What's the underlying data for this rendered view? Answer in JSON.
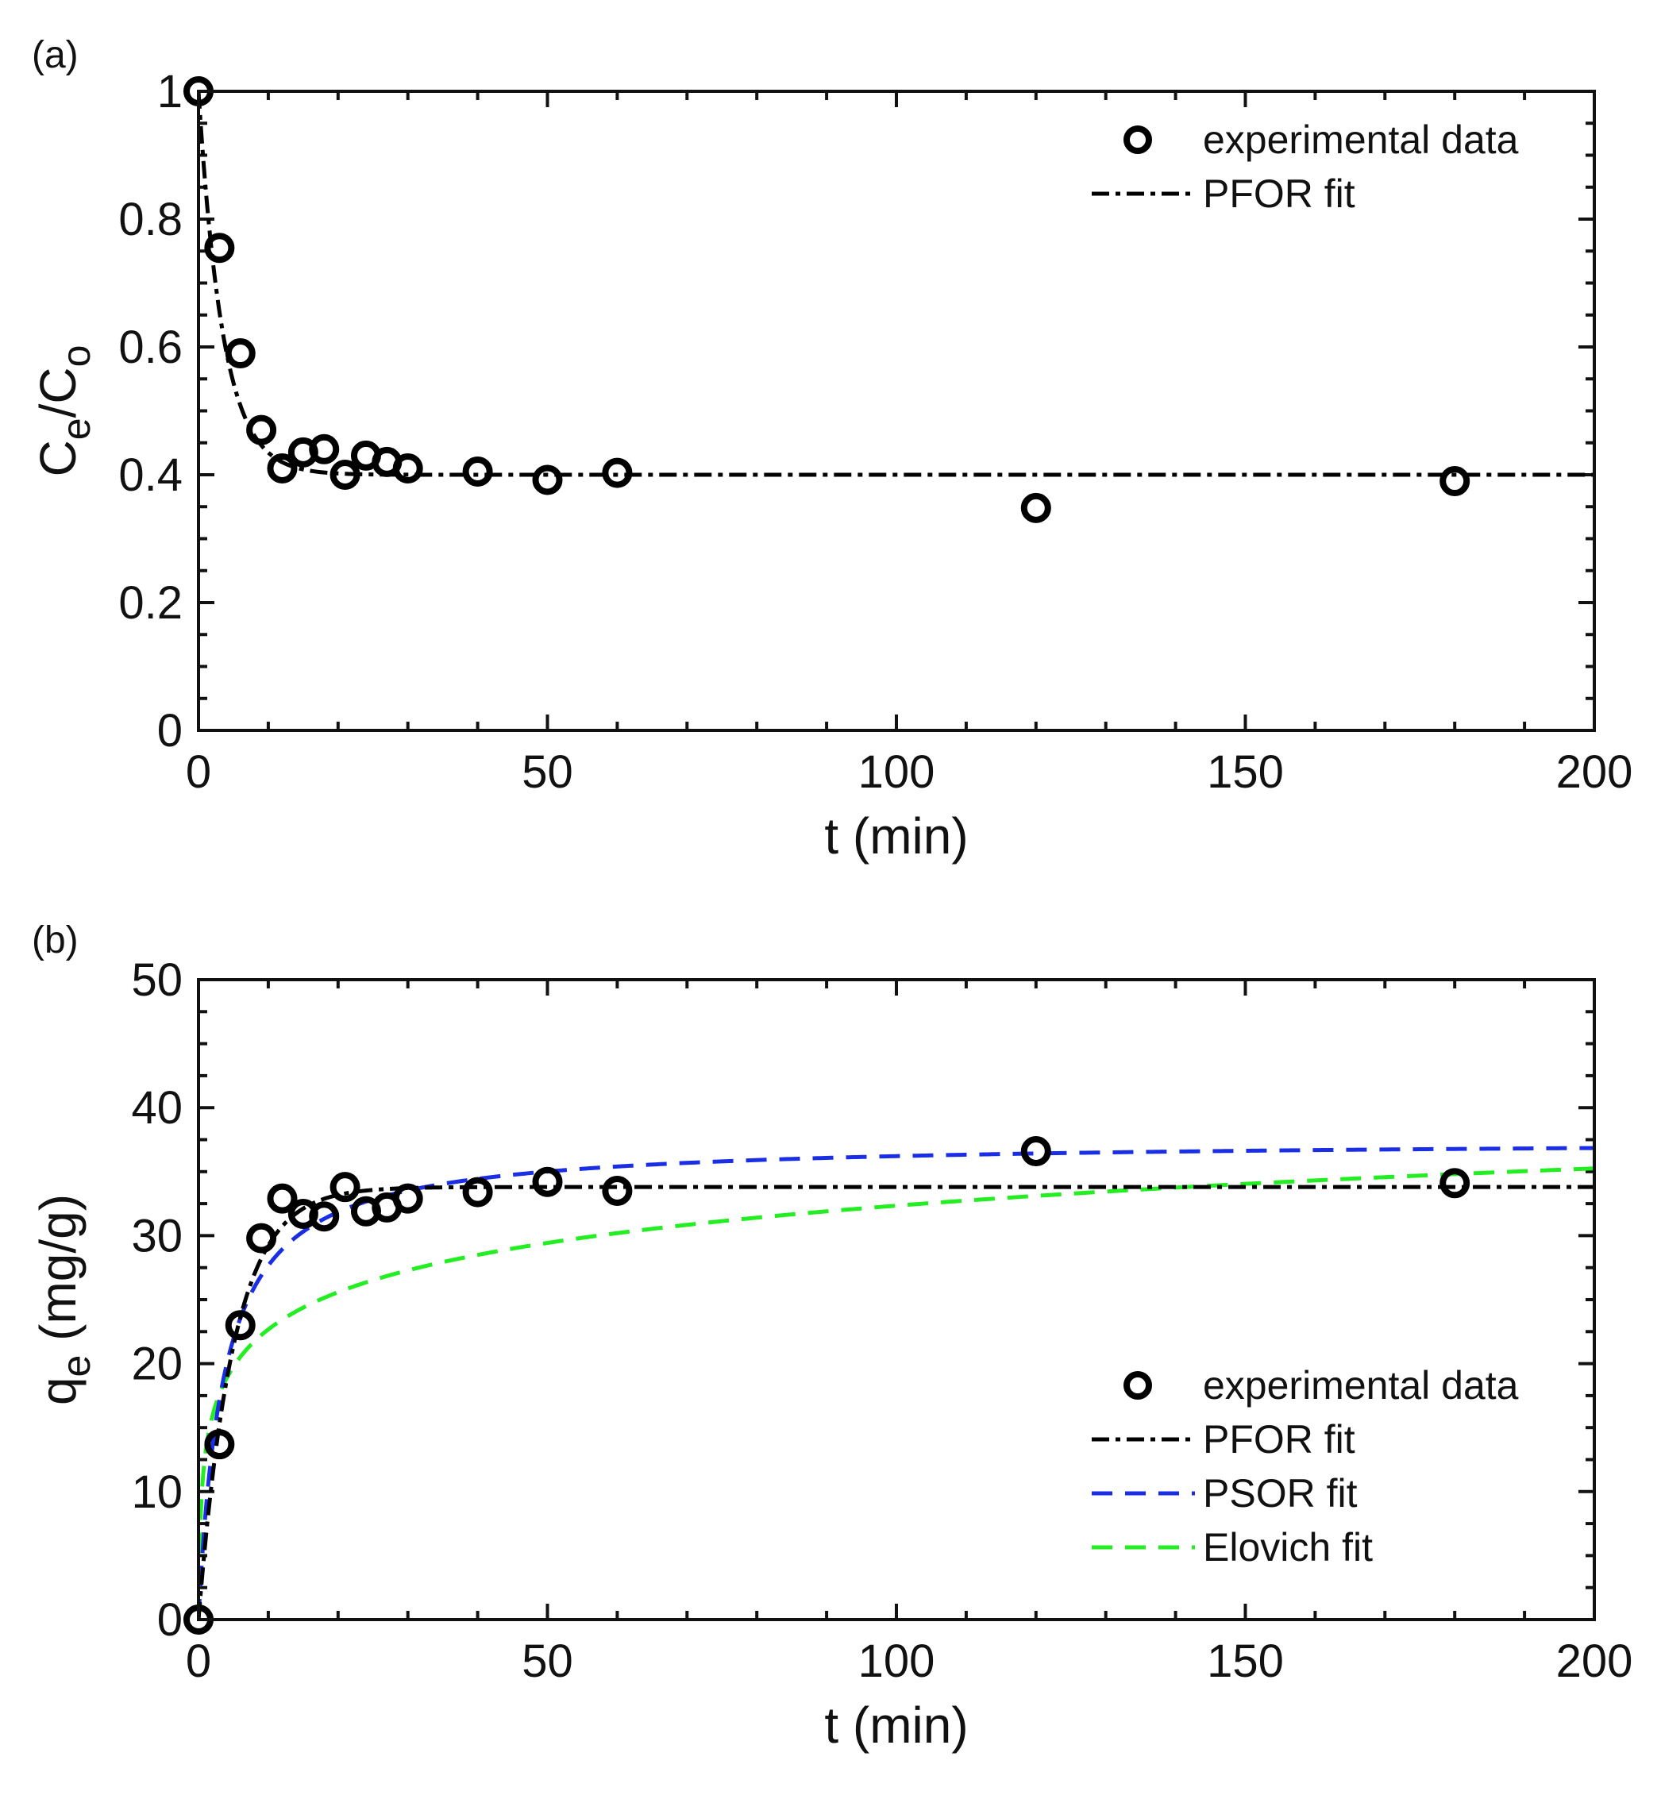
{
  "chart_data": [
    {
      "id": "a",
      "type": "scatter",
      "panel_label": "(a)",
      "title": "",
      "xlabel": "t (min)",
      "ylabel": {
        "base1": "C",
        "sub1": "e",
        "mid": "/C",
        "sub2": "o"
      },
      "xlim": [
        0,
        200
      ],
      "ylim": [
        0,
        1
      ],
      "xticks": [
        0,
        50,
        100,
        150,
        200
      ],
      "yticks": [
        0,
        0.2,
        0.4,
        0.6,
        0.8,
        1
      ],
      "xtick_labels": [
        "0",
        "50",
        "100",
        "150",
        "200"
      ],
      "ytick_labels": [
        "0",
        "0.2",
        "0.4",
        "0.6",
        "0.8",
        "1"
      ],
      "grid": false,
      "legend_position": "top-right",
      "experimental": {
        "name": "experimental data",
        "x": [
          0,
          3,
          6,
          9,
          12,
          15,
          18,
          21,
          24,
          27,
          30,
          40,
          50,
          60,
          120,
          180
        ],
        "y": [
          1.0,
          0.755,
          0.59,
          0.47,
          0.41,
          0.435,
          0.44,
          0.4,
          0.43,
          0.42,
          0.41,
          0.405,
          0.392,
          0.403,
          0.348,
          0.39
        ]
      },
      "fits": [
        {
          "name": "PFOR fit",
          "model": "pfor",
          "color": "#000000",
          "style": "dash-dot",
          "params": {
            "qe": 0.4,
            "k": 0.285
          }
        }
      ]
    },
    {
      "id": "b",
      "type": "scatter",
      "panel_label": "(b)",
      "title": "",
      "xlabel": "t (min)",
      "ylabel": {
        "base1": "q",
        "sub1": "e",
        "mid": " (mg/g)"
      },
      "xlim": [
        0,
        200
      ],
      "ylim": [
        0,
        50
      ],
      "xticks": [
        0,
        50,
        100,
        150,
        200
      ],
      "yticks": [
        0,
        10,
        20,
        30,
        40,
        50
      ],
      "xtick_labels": [
        "0",
        "50",
        "100",
        "150",
        "200"
      ],
      "ytick_labels": [
        "0",
        "10",
        "20",
        "30",
        "40",
        "50"
      ],
      "grid": false,
      "legend_position": "bottom-right",
      "experimental": {
        "name": "experimental data",
        "x": [
          0,
          3,
          6,
          9,
          12,
          15,
          18,
          21,
          24,
          27,
          30,
          40,
          50,
          60,
          120,
          180
        ],
        "y": [
          0,
          13.7,
          23.0,
          29.8,
          32.9,
          31.7,
          31.5,
          33.8,
          31.9,
          32.2,
          32.9,
          33.4,
          34.2,
          33.5,
          36.6,
          34.1
        ]
      },
      "fits": [
        {
          "name": "PFOR fit",
          "model": "pfor",
          "color": "#000000",
          "style": "dash-dot",
          "params": {
            "qe": 33.8,
            "k": 0.2
          }
        },
        {
          "name": "PSOR fit",
          "model": "psor",
          "color": "#1a2ee6",
          "style": "dashed",
          "params": {
            "qe": 37.5,
            "k": 0.0075
          }
        },
        {
          "name": "Elovich fit",
          "model": "elovich",
          "color": "#22ee22",
          "style": "dashed",
          "params": {
            "a": 13.0,
            "b": 4.2
          }
        }
      ]
    }
  ]
}
